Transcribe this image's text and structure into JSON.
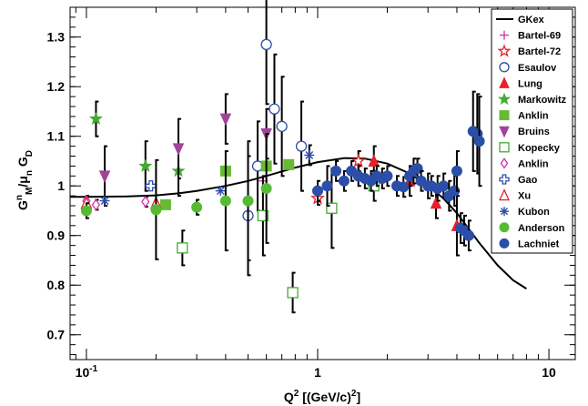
{
  "chart_data": {
    "type": "scatter",
    "title": "",
    "xlabel": "Q²  [(GeV/c)²]",
    "ylabel": "Gᴹⁿ/μₙ Gᴅ",
    "ylabel_parts": {
      "main1": "G",
      "sub1": "M",
      "sup1": "n",
      "sep": "/μ",
      "sub2": "n",
      "main2": " G",
      "sub3": "D"
    },
    "xlabel_parts": {
      "main": "Q",
      "sup": "2",
      "rest": "  [(GeV/c)",
      "sup2": "2",
      "close": "]"
    },
    "xscale": "log",
    "xlim": [
      0.085,
      13
    ],
    "ylim": [
      0.65,
      1.36
    ],
    "xticks": [
      {
        "value": 0.1,
        "base": "10",
        "exp": "-1"
      },
      {
        "value": 1,
        "base": "1",
        "exp": ""
      },
      {
        "value": 10,
        "base": "10",
        "exp": ""
      }
    ],
    "yticks": [
      {
        "value": 0.7,
        "label": "0.7"
      },
      {
        "value": 0.8,
        "label": "0.8"
      },
      {
        "value": 0.9,
        "label": "0.9"
      },
      {
        "value": 1.0,
        "label": "1"
      },
      {
        "value": 1.1,
        "label": "1.1"
      },
      {
        "value": 1.2,
        "label": "1.2"
      },
      {
        "value": 1.3,
        "label": "1.3"
      }
    ],
    "grid": false,
    "legend_position": "top-right",
    "curve": {
      "name": "GKex",
      "color": "#000000",
      "x": [
        0.085,
        0.1,
        0.15,
        0.2,
        0.25,
        0.3,
        0.4,
        0.5,
        0.6,
        0.8,
        1.0,
        1.3,
        1.6,
        2.0,
        2.5,
        3.0,
        3.5,
        4.0,
        5.0,
        6.0,
        7.0,
        8.0
      ],
      "y": [
        0.978,
        0.978,
        0.979,
        0.981,
        0.985,
        0.99,
        1.0,
        1.01,
        1.02,
        1.037,
        1.048,
        1.056,
        1.055,
        1.045,
        1.025,
        1.0,
        0.975,
        0.945,
        0.885,
        0.84,
        0.81,
        0.793
      ]
    },
    "series": [
      {
        "name": "Bartel-69",
        "marker": "plus",
        "color": "#cc33aa",
        "points": [
          [
            0.58,
            1.01,
            0.0
          ]
        ]
      },
      {
        "name": "Bartel-72",
        "marker": "star-open",
        "color": "#e8202a",
        "points": [
          [
            1.0,
            0.975,
            0.013
          ],
          [
            1.5,
            1.05,
            0.02
          ]
        ]
      },
      {
        "name": "Esaulov",
        "marker": "circle-open",
        "color": "#2b4ea8",
        "points": [
          [
            0.5,
            0.94,
            0.12
          ],
          [
            0.55,
            1.04,
            0.09
          ],
          [
            0.6,
            1.285,
            0.12
          ],
          [
            0.65,
            1.155,
            0.11
          ],
          [
            0.7,
            1.12,
            0.1
          ],
          [
            0.85,
            1.08,
            0.09
          ]
        ]
      },
      {
        "name": "Lung",
        "marker": "triangle",
        "color": "#e8202a",
        "points": [
          [
            1.75,
            1.05,
            0.03
          ],
          [
            2.5,
            1.01,
            0.03
          ],
          [
            3.25,
            0.965,
            0.03
          ],
          [
            4.0,
            0.92,
            0.06
          ]
        ]
      },
      {
        "name": "Markowitz",
        "marker": "star",
        "color": "#44aa33",
        "points": [
          [
            0.11,
            1.135,
            0.035
          ],
          [
            0.18,
            1.04,
            0.05
          ],
          [
            0.25,
            1.03,
            0.05
          ]
        ]
      },
      {
        "name": "Anklin",
        "marker": "square",
        "color": "#66bb33",
        "points": [
          [
            0.22,
            0.962,
            0.0
          ],
          [
            0.4,
            1.03,
            0.0
          ],
          [
            0.6,
            1.04,
            0.0
          ],
          [
            0.75,
            1.043,
            0.0
          ]
        ]
      },
      {
        "name": "Bruins",
        "marker": "triangle-down",
        "color": "#a0449a",
        "points": [
          [
            0.12,
            1.02,
            0.06
          ],
          [
            0.25,
            1.075,
            0.06
          ],
          [
            0.4,
            1.135,
            0.05
          ],
          [
            0.6,
            1.105,
            0.05
          ]
        ]
      },
      {
        "name": "Kopecky",
        "marker": "square-open",
        "color": "#44aa33",
        "points": [
          [
            0.26,
            0.875,
            0.035
          ],
          [
            0.58,
            0.94,
            0.08
          ],
          [
            0.78,
            0.785,
            0.04
          ],
          [
            1.15,
            0.955,
            0.08
          ],
          [
            1.75,
            1.0,
            0.03
          ]
        ]
      },
      {
        "name": "Anklin",
        "marker": "diamond-open",
        "color": "#cc33aa",
        "points": [
          [
            0.1,
            0.97,
            0.01
          ],
          [
            0.11,
            0.962,
            0.01
          ],
          [
            0.18,
            0.968,
            0.01
          ]
        ]
      },
      {
        "name": "Gao",
        "marker": "cross-open",
        "color": "#2b4ea8",
        "points": [
          [
            0.19,
            1.0,
            0.0
          ]
        ]
      },
      {
        "name": "Xu",
        "marker": "triangle-open",
        "color": "#e8202a",
        "points": [
          [
            0.1,
            0.965,
            0.0
          ],
          [
            0.2,
            0.965,
            0.0
          ]
        ]
      },
      {
        "name": "Kubon",
        "marker": "asterisk",
        "color": "#2b4ea8",
        "points": [
          [
            0.12,
            0.97,
            0.0
          ],
          [
            0.38,
            0.99,
            0.0
          ],
          [
            0.92,
            1.062,
            0.02
          ]
        ]
      },
      {
        "name": "Anderson",
        "marker": "circle",
        "color": "#55bb33",
        "points": [
          [
            0.1,
            0.95,
            0.015
          ],
          [
            0.2,
            0.952,
            0.1
          ],
          [
            0.3,
            0.957,
            0.015
          ],
          [
            0.4,
            0.97,
            0.1
          ],
          [
            0.5,
            0.97,
            0.12
          ],
          [
            0.6,
            0.995,
            0.11
          ]
        ]
      },
      {
        "name": "Lachniet",
        "marker": "circle",
        "color": "#2b4ea8",
        "points": [
          [
            1.0,
            0.99,
            0.02
          ],
          [
            1.1,
            1.0,
            0.04
          ],
          [
            1.2,
            1.03,
            0.02
          ],
          [
            1.3,
            1.01,
            0.02
          ],
          [
            1.4,
            1.03,
            0.02
          ],
          [
            1.5,
            1.02,
            0.02
          ],
          [
            1.6,
            1.015,
            0.02
          ],
          [
            1.7,
            1.01,
            0.02
          ],
          [
            1.8,
            1.02,
            0.02
          ],
          [
            1.9,
            1.015,
            0.02
          ],
          [
            2.0,
            1.02,
            0.02
          ],
          [
            2.2,
            1.0,
            0.02
          ],
          [
            2.35,
            0.998,
            0.02
          ],
          [
            2.5,
            1.02,
            0.02
          ],
          [
            2.6,
            1.03,
            0.025
          ],
          [
            2.7,
            1.035,
            0.02
          ],
          [
            2.8,
            1.01,
            0.02
          ],
          [
            3.0,
            1.0,
            0.025
          ],
          [
            3.1,
            1.0,
            0.02
          ],
          [
            3.3,
            0.995,
            0.025
          ],
          [
            3.5,
            1.0,
            0.025
          ],
          [
            3.7,
            0.98,
            0.03
          ],
          [
            3.9,
            0.99,
            0.03
          ],
          [
            4.0,
            1.03,
            0.04
          ],
          [
            4.15,
            0.915,
            0.03
          ],
          [
            4.3,
            0.91,
            0.03
          ],
          [
            4.5,
            0.9,
            0.03
          ],
          [
            4.7,
            1.11,
            0.08
          ],
          [
            4.9,
            1.105,
            0.08
          ],
          [
            5.0,
            1.09,
            0.09
          ]
        ]
      }
    ]
  }
}
